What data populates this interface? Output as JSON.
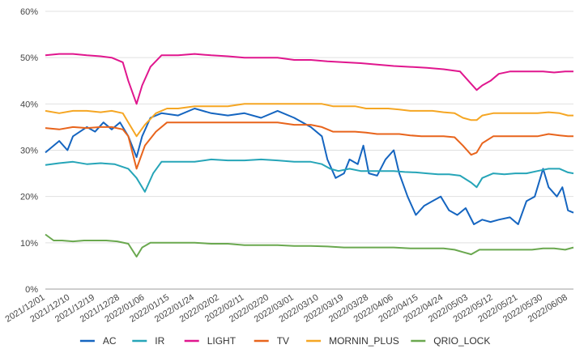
{
  "chart_data": {
    "type": "line",
    "title": "",
    "xlabel": "",
    "ylabel": "",
    "ylim": [
      0,
      60
    ],
    "y_tick_labels": [
      "0%",
      "10%",
      "20%",
      "30%",
      "40%",
      "50%",
      "60%"
    ],
    "y_ticks": [
      0,
      10,
      20,
      30,
      40,
      50,
      60
    ],
    "grid": true,
    "legend_position": "bottom",
    "x_tick_labels": [
      "2021/12/01",
      "2021/12/10",
      "2021/12/19",
      "2021/12/28",
      "2022/01/06",
      "2022/01/15",
      "2022/01/24",
      "2022/02/02",
      "2022/02/11",
      "2022/02/20",
      "2022/03/01",
      "2022/03/10",
      "2022/03/19",
      "2022/03/28",
      "2022/04/06",
      "2022/04/15",
      "2022/04/24",
      "2022/05/03",
      "2022/05/12",
      "2022/05/21",
      "2022/05/30",
      "2022/06/08"
    ],
    "x_tick_days": [
      0,
      9,
      18,
      27,
      36,
      45,
      54,
      63,
      72,
      81,
      90,
      99,
      108,
      117,
      126,
      135,
      144,
      153,
      162,
      171,
      180,
      189
    ],
    "x_range_days": [
      0,
      191
    ],
    "series": [
      {
        "name": "AC",
        "color": "#1565c0",
        "points": [
          [
            0,
            29.5
          ],
          [
            5,
            32
          ],
          [
            8,
            30
          ],
          [
            10,
            33
          ],
          [
            15,
            35
          ],
          [
            18,
            34
          ],
          [
            21,
            36
          ],
          [
            24,
            34.5
          ],
          [
            27,
            36
          ],
          [
            30,
            33
          ],
          [
            33,
            28.5
          ],
          [
            35,
            33
          ],
          [
            38,
            37
          ],
          [
            42,
            38
          ],
          [
            48,
            37.5
          ],
          [
            54,
            39
          ],
          [
            60,
            38
          ],
          [
            66,
            37.5
          ],
          [
            72,
            38
          ],
          [
            78,
            37
          ],
          [
            84,
            38.5
          ],
          [
            90,
            37
          ],
          [
            96,
            35
          ],
          [
            100,
            33
          ],
          [
            102,
            28
          ],
          [
            105,
            24
          ],
          [
            108,
            25
          ],
          [
            110,
            28
          ],
          [
            113,
            27
          ],
          [
            115,
            31
          ],
          [
            117,
            25
          ],
          [
            120,
            24.5
          ],
          [
            123,
            28
          ],
          [
            126,
            30
          ],
          [
            128,
            25
          ],
          [
            131,
            20
          ],
          [
            134,
            16
          ],
          [
            137,
            18
          ],
          [
            140,
            19
          ],
          [
            143,
            20
          ],
          [
            146,
            17
          ],
          [
            149,
            16
          ],
          [
            152,
            17.5
          ],
          [
            155,
            14
          ],
          [
            158,
            15
          ],
          [
            161,
            14.5
          ],
          [
            164,
            15
          ],
          [
            168,
            15.5
          ],
          [
            171,
            14
          ],
          [
            174,
            19
          ],
          [
            177,
            20
          ],
          [
            180,
            26
          ],
          [
            182,
            22
          ],
          [
            185,
            20
          ],
          [
            187,
            22
          ],
          [
            189,
            17
          ],
          [
            191,
            16.5
          ]
        ]
      },
      {
        "name": "IR",
        "color": "#26a5b8",
        "points": [
          [
            0,
            26.8
          ],
          [
            5,
            27.2
          ],
          [
            10,
            27.5
          ],
          [
            15,
            27
          ],
          [
            20,
            27.2
          ],
          [
            25,
            27
          ],
          [
            30,
            26
          ],
          [
            33,
            24
          ],
          [
            36,
            21
          ],
          [
            39,
            25
          ],
          [
            42,
            27.5
          ],
          [
            48,
            27.5
          ],
          [
            54,
            27.5
          ],
          [
            60,
            28
          ],
          [
            66,
            27.8
          ],
          [
            72,
            27.8
          ],
          [
            78,
            28
          ],
          [
            84,
            27.8
          ],
          [
            90,
            27.5
          ],
          [
            96,
            27.5
          ],
          [
            100,
            27
          ],
          [
            103,
            26
          ],
          [
            106,
            25.5
          ],
          [
            110,
            26
          ],
          [
            114,
            25.5
          ],
          [
            118,
            25.5
          ],
          [
            122,
            25.5
          ],
          [
            126,
            25.5
          ],
          [
            130,
            25.3
          ],
          [
            134,
            25.2
          ],
          [
            138,
            25
          ],
          [
            142,
            24.8
          ],
          [
            146,
            24.8
          ],
          [
            150,
            24.5
          ],
          [
            154,
            23
          ],
          [
            156,
            22
          ],
          [
            158,
            24
          ],
          [
            162,
            25
          ],
          [
            166,
            24.8
          ],
          [
            170,
            25
          ],
          [
            174,
            25
          ],
          [
            178,
            25.5
          ],
          [
            182,
            26
          ],
          [
            186,
            26
          ],
          [
            189,
            25.2
          ],
          [
            191,
            25
          ]
        ]
      },
      {
        "name": "LIGHT",
        "color": "#e0168e",
        "points": [
          [
            0,
            50.5
          ],
          [
            5,
            50.8
          ],
          [
            10,
            50.8
          ],
          [
            15,
            50.5
          ],
          [
            20,
            50.3
          ],
          [
            24,
            50
          ],
          [
            28,
            49
          ],
          [
            30,
            45
          ],
          [
            33,
            40
          ],
          [
            35,
            44
          ],
          [
            38,
            48
          ],
          [
            42,
            50.5
          ],
          [
            48,
            50.5
          ],
          [
            54,
            50.8
          ],
          [
            60,
            50.5
          ],
          [
            66,
            50.3
          ],
          [
            72,
            50
          ],
          [
            78,
            50
          ],
          [
            84,
            50
          ],
          [
            90,
            49.5
          ],
          [
            96,
            49.5
          ],
          [
            102,
            49.2
          ],
          [
            108,
            49
          ],
          [
            114,
            48.8
          ],
          [
            120,
            48.5
          ],
          [
            126,
            48.2
          ],
          [
            132,
            48
          ],
          [
            138,
            47.8
          ],
          [
            144,
            47.5
          ],
          [
            150,
            47
          ],
          [
            153,
            45
          ],
          [
            156,
            43
          ],
          [
            158,
            44
          ],
          [
            161,
            45
          ],
          [
            164,
            46.5
          ],
          [
            168,
            47
          ],
          [
            172,
            47
          ],
          [
            176,
            47
          ],
          [
            180,
            47
          ],
          [
            184,
            46.8
          ],
          [
            188,
            47
          ],
          [
            191,
            47
          ]
        ]
      },
      {
        "name": "TV",
        "color": "#e8641c",
        "points": [
          [
            0,
            34.8
          ],
          [
            5,
            34.5
          ],
          [
            10,
            35
          ],
          [
            15,
            34.8
          ],
          [
            20,
            35
          ],
          [
            24,
            35
          ],
          [
            28,
            34.5
          ],
          [
            30,
            33
          ],
          [
            33,
            26
          ],
          [
            36,
            31
          ],
          [
            40,
            34
          ],
          [
            44,
            36
          ],
          [
            48,
            36
          ],
          [
            54,
            36
          ],
          [
            60,
            36
          ],
          [
            66,
            36
          ],
          [
            72,
            36
          ],
          [
            78,
            36
          ],
          [
            84,
            36
          ],
          [
            90,
            35.5
          ],
          [
            96,
            35.5
          ],
          [
            100,
            35
          ],
          [
            104,
            34
          ],
          [
            108,
            34
          ],
          [
            112,
            34
          ],
          [
            116,
            33.8
          ],
          [
            120,
            33.5
          ],
          [
            124,
            33.5
          ],
          [
            128,
            33.5
          ],
          [
            132,
            33.2
          ],
          [
            136,
            33
          ],
          [
            140,
            33
          ],
          [
            144,
            33
          ],
          [
            148,
            32.8
          ],
          [
            151,
            31
          ],
          [
            154,
            29
          ],
          [
            156,
            29.5
          ],
          [
            158,
            31.5
          ],
          [
            162,
            33
          ],
          [
            166,
            33
          ],
          [
            170,
            33
          ],
          [
            174,
            33
          ],
          [
            178,
            33
          ],
          [
            182,
            33.5
          ],
          [
            186,
            33.2
          ],
          [
            189,
            33
          ],
          [
            191,
            33
          ]
        ]
      },
      {
        "name": "MORNIN_PLUS",
        "color": "#f5a623",
        "points": [
          [
            0,
            38.5
          ],
          [
            5,
            38
          ],
          [
            10,
            38.5
          ],
          [
            15,
            38.5
          ],
          [
            20,
            38.2
          ],
          [
            24,
            38.5
          ],
          [
            28,
            38
          ],
          [
            30,
            36
          ],
          [
            33,
            33
          ],
          [
            36,
            35.5
          ],
          [
            40,
            38
          ],
          [
            44,
            39
          ],
          [
            48,
            39
          ],
          [
            54,
            39.5
          ],
          [
            60,
            39.5
          ],
          [
            66,
            39.5
          ],
          [
            72,
            40
          ],
          [
            78,
            40
          ],
          [
            84,
            40
          ],
          [
            90,
            40
          ],
          [
            96,
            40
          ],
          [
            100,
            40
          ],
          [
            104,
            39.5
          ],
          [
            108,
            39.5
          ],
          [
            112,
            39.5
          ],
          [
            116,
            39
          ],
          [
            120,
            39
          ],
          [
            124,
            39
          ],
          [
            128,
            38.8
          ],
          [
            132,
            38.5
          ],
          [
            136,
            38.5
          ],
          [
            140,
            38.5
          ],
          [
            144,
            38.2
          ],
          [
            148,
            38
          ],
          [
            151,
            37
          ],
          [
            154,
            36.5
          ],
          [
            156,
            36.5
          ],
          [
            158,
            37.5
          ],
          [
            162,
            38
          ],
          [
            166,
            38
          ],
          [
            170,
            38
          ],
          [
            174,
            38
          ],
          [
            178,
            38
          ],
          [
            182,
            38.2
          ],
          [
            186,
            38
          ],
          [
            189,
            37.5
          ],
          [
            191,
            37.5
          ]
        ]
      },
      {
        "name": "QRIO_LOCK",
        "color": "#6aa84f",
        "points": [
          [
            0,
            11.8
          ],
          [
            3,
            10.5
          ],
          [
            6,
            10.5
          ],
          [
            10,
            10.3
          ],
          [
            14,
            10.5
          ],
          [
            18,
            10.5
          ],
          [
            22,
            10.5
          ],
          [
            26,
            10.3
          ],
          [
            30,
            9.8
          ],
          [
            33,
            7
          ],
          [
            35,
            9
          ],
          [
            38,
            10
          ],
          [
            42,
            10
          ],
          [
            48,
            10
          ],
          [
            54,
            10
          ],
          [
            60,
            9.8
          ],
          [
            66,
            9.8
          ],
          [
            72,
            9.5
          ],
          [
            78,
            9.5
          ],
          [
            84,
            9.5
          ],
          [
            90,
            9.3
          ],
          [
            96,
            9.3
          ],
          [
            102,
            9.2
          ],
          [
            108,
            9
          ],
          [
            114,
            9
          ],
          [
            120,
            9
          ],
          [
            126,
            9
          ],
          [
            132,
            8.8
          ],
          [
            138,
            8.8
          ],
          [
            144,
            8.8
          ],
          [
            148,
            8.5
          ],
          [
            151,
            8
          ],
          [
            154,
            7.5
          ],
          [
            157,
            8.5
          ],
          [
            160,
            8.5
          ],
          [
            164,
            8.5
          ],
          [
            168,
            8.5
          ],
          [
            172,
            8.5
          ],
          [
            176,
            8.5
          ],
          [
            180,
            8.8
          ],
          [
            184,
            8.8
          ],
          [
            188,
            8.5
          ],
          [
            191,
            9
          ]
        ]
      }
    ]
  }
}
